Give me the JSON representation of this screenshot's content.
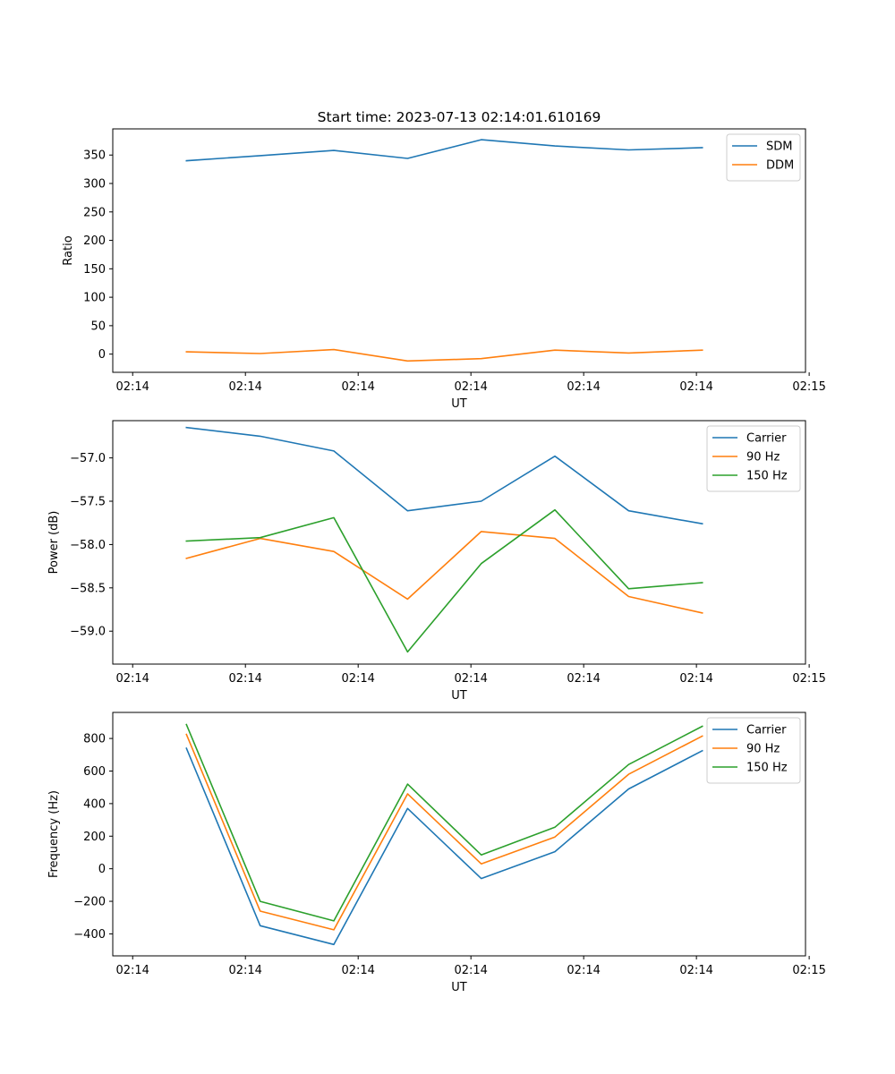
{
  "figure": {
    "title": "Start time: 2023-07-13 02:14:01.610169"
  },
  "chart_data": [
    {
      "type": "line",
      "title": "Start time: 2023-07-13 02:14:01.610169",
      "xlabel": "UT",
      "ylabel": "Ratio",
      "x": [
        0.5,
        1.5,
        2.5,
        3.5,
        4.5,
        5.5,
        6.5,
        7.5
      ],
      "xlim": [
        -0.5,
        8.9
      ],
      "ylim": [
        -32,
        396
      ],
      "x_ticks": [
        -0.23,
        1.3,
        2.83,
        4.36,
        5.89,
        7.42,
        8.95
      ],
      "x_tick_labels": [
        "02:14",
        "02:14",
        "02:14",
        "02:14",
        "02:14",
        "02:14",
        "02:15"
      ],
      "y_ticks": [
        0,
        50,
        100,
        150,
        200,
        250,
        300,
        350
      ],
      "y_tick_labels": [
        "0",
        "50",
        "100",
        "150",
        "200",
        "250",
        "300",
        "350"
      ],
      "legend_position": "top-right",
      "series": [
        {
          "name": "SDM",
          "color": "#1f77b4",
          "values": [
            340,
            349,
            358,
            344,
            377,
            366,
            359,
            363
          ]
        },
        {
          "name": "DDM",
          "color": "#ff7f0e",
          "values": [
            4,
            1,
            8,
            -12,
            -8,
            7,
            2,
            7
          ]
        }
      ]
    },
    {
      "type": "line",
      "title": "",
      "xlabel": "UT",
      "ylabel": "Power (dB)",
      "x": [
        0.5,
        1.5,
        2.5,
        3.5,
        4.5,
        5.5,
        6.5,
        7.5
      ],
      "xlim": [
        -0.5,
        8.9
      ],
      "ylim": [
        -59.38,
        -56.57
      ],
      "x_ticks": [
        -0.23,
        1.3,
        2.83,
        4.36,
        5.89,
        7.42,
        8.95
      ],
      "x_tick_labels": [
        "02:14",
        "02:14",
        "02:14",
        "02:14",
        "02:14",
        "02:14",
        "02:15"
      ],
      "y_ticks": [
        -59.0,
        -58.5,
        -58.0,
        -57.5,
        -57.0
      ],
      "y_tick_labels": [
        "−59.0",
        "−58.5",
        "−58.0",
        "−57.5",
        "−57.0"
      ],
      "legend_position": "top-right",
      "series": [
        {
          "name": "Carrier",
          "color": "#1f77b4",
          "values": [
            -56.65,
            -56.75,
            -56.92,
            -57.61,
            -57.5,
            -56.98,
            -57.61,
            -57.76
          ]
        },
        {
          "name": "90 Hz",
          "color": "#ff7f0e",
          "values": [
            -58.16,
            -57.93,
            -58.08,
            -58.63,
            -57.85,
            -57.93,
            -58.6,
            -58.79
          ]
        },
        {
          "name": "150 Hz",
          "color": "#2ca02c",
          "values": [
            -57.96,
            -57.92,
            -57.69,
            -59.24,
            -58.22,
            -57.6,
            -58.51,
            -58.44
          ]
        }
      ]
    },
    {
      "type": "line",
      "title": "",
      "xlabel": "UT",
      "ylabel": "Frequency (Hz)",
      "x": [
        0.5,
        1.5,
        2.5,
        3.5,
        4.5,
        5.5,
        6.5,
        7.5
      ],
      "xlim": [
        -0.5,
        8.9
      ],
      "ylim": [
        -535,
        960
      ],
      "x_ticks": [
        -0.23,
        1.3,
        2.83,
        4.36,
        5.89,
        7.42,
        8.95
      ],
      "x_tick_labels": [
        "02:14",
        "02:14",
        "02:14",
        "02:14",
        "02:14",
        "02:14",
        "02:15"
      ],
      "y_ticks": [
        -400,
        -200,
        0,
        200,
        400,
        600,
        800
      ],
      "y_tick_labels": [
        "−400",
        "−200",
        "0",
        "200",
        "400",
        "600",
        "800"
      ],
      "legend_position": "top-right",
      "series": [
        {
          "name": "Carrier",
          "color": "#1f77b4",
          "values": [
            740,
            -350,
            -465,
            370,
            -60,
            105,
            490,
            725
          ]
        },
        {
          "name": "90 Hz",
          "color": "#ff7f0e",
          "values": [
            825,
            -260,
            -375,
            460,
            30,
            195,
            580,
            815
          ]
        },
        {
          "name": "150 Hz",
          "color": "#2ca02c",
          "values": [
            885,
            -200,
            -320,
            520,
            85,
            255,
            640,
            875
          ]
        }
      ]
    }
  ]
}
